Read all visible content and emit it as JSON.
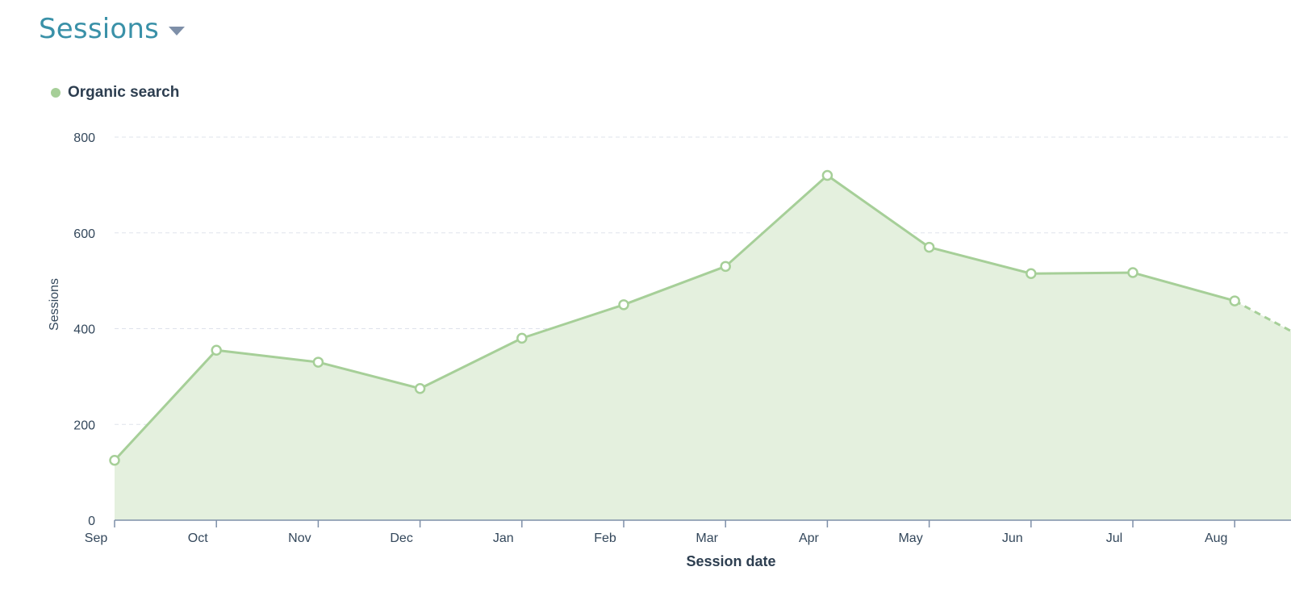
{
  "header": {
    "title": "Sessions"
  },
  "colors": {
    "series": "#a6cf98",
    "fill": "#e4f0de",
    "grid": "#dfe3eb",
    "axis": "#7e8fa8",
    "text": "#33475b",
    "title": "#3a91a8"
  },
  "chart_data": {
    "type": "area",
    "title": "",
    "xlabel": "Session date",
    "ylabel": "Sessions",
    "ylim": [
      0,
      800
    ],
    "yticks": [
      0,
      200,
      400,
      600,
      800
    ],
    "grid": true,
    "legend_placement": "top-left",
    "categories": [
      "Sep",
      "Oct",
      "Nov",
      "Dec",
      "Jan",
      "Feb",
      "Mar",
      "Apr",
      "May",
      "Jun",
      "Jul",
      "Aug"
    ],
    "series": [
      {
        "name": "Organic search",
        "values": [
          125,
          355,
          330,
          275,
          380,
          450,
          530,
          720,
          570,
          515,
          517,
          458
        ],
        "trailing_partial": 395
      }
    ]
  }
}
